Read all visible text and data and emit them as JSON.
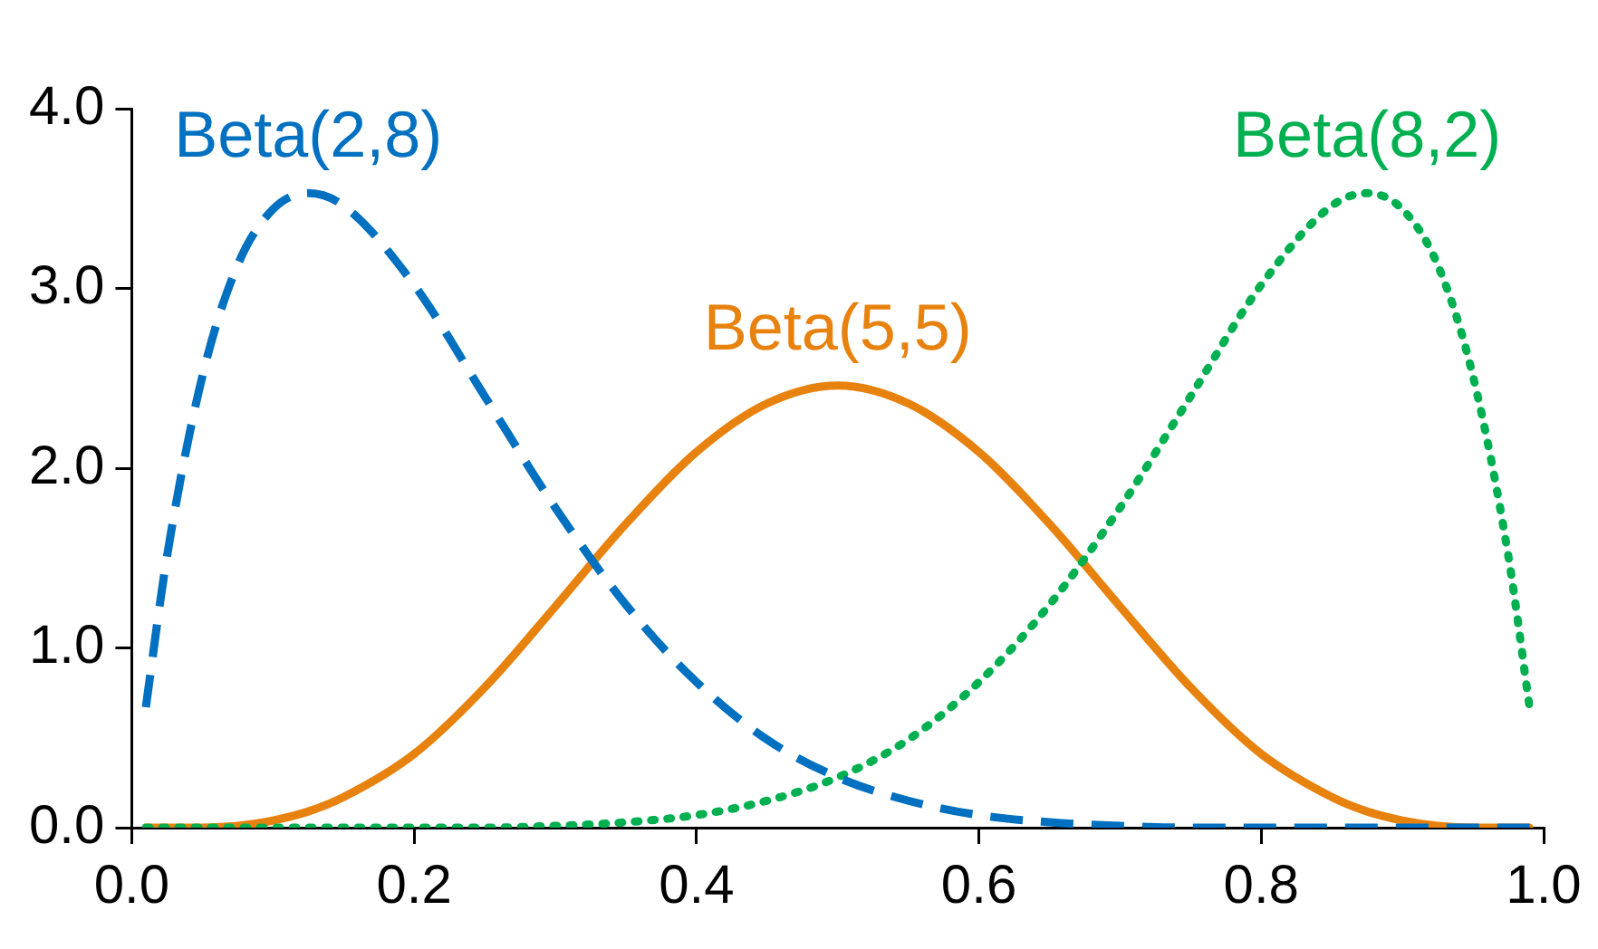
{
  "chart_data": {
    "type": "line",
    "x": [
      0.01,
      0.025,
      0.05,
      0.075,
      0.1,
      0.125,
      0.15,
      0.2,
      0.25,
      0.3,
      0.35,
      0.4,
      0.45,
      0.5,
      0.55,
      0.6,
      0.65,
      0.7,
      0.75,
      0.8,
      0.85,
      0.875,
      0.9,
      0.925,
      0.95,
      0.975,
      0.99
    ],
    "series": [
      {
        "name": "Beta(2,8)",
        "color": "#0070c0",
        "line_style": "dashed",
        "values": [
          0.67,
          1.51,
          2.51,
          3.13,
          3.44,
          3.53,
          3.46,
          3.02,
          2.4,
          1.78,
          1.24,
          0.81,
          0.49,
          0.28,
          0.15,
          0.07,
          0.03,
          0.01,
          0,
          0,
          0,
          0,
          0,
          0,
          0,
          0,
          0
        ]
      },
      {
        "name": "Beta(5,5)",
        "color": "#e8820e",
        "line_style": "solid",
        "values": [
          0,
          0,
          0,
          0.01,
          0.04,
          0.09,
          0.17,
          0.41,
          0.78,
          1.23,
          1.69,
          2.09,
          2.36,
          2.46,
          2.36,
          2.09,
          1.69,
          1.23,
          0.78,
          0.41,
          0.17,
          0.09,
          0.04,
          0.01,
          0,
          0,
          0
        ]
      },
      {
        "name": "Beta(8,2)",
        "color": "#00b050",
        "line_style": "dotted",
        "values": [
          0,
          0,
          0,
          0,
          0,
          0,
          0,
          0,
          0,
          0.01,
          0.03,
          0.07,
          0.15,
          0.28,
          0.49,
          0.81,
          1.24,
          1.78,
          2.4,
          3.02,
          3.46,
          3.53,
          3.44,
          3.13,
          2.51,
          1.51,
          0.67
        ]
      }
    ],
    "xlim": [
      0,
      1
    ],
    "xticks": [
      {
        "value": 0,
        "label": "0.0"
      },
      0.2,
      0.4,
      0.6,
      0.8,
      {
        "value": 1,
        "label": "1.0"
      }
    ],
    "ylim": [
      0,
      4
    ],
    "yticks": [
      {
        "value": 0,
        "label": "0.0"
      },
      {
        "value": 1,
        "label": "1.0"
      },
      {
        "value": 2,
        "label": "2.0"
      },
      {
        "value": 3,
        "label": "3.0"
      },
      {
        "value": 4,
        "label": "4.0"
      }
    ],
    "grid": false,
    "legend": false,
    "marker": "none"
  }
}
